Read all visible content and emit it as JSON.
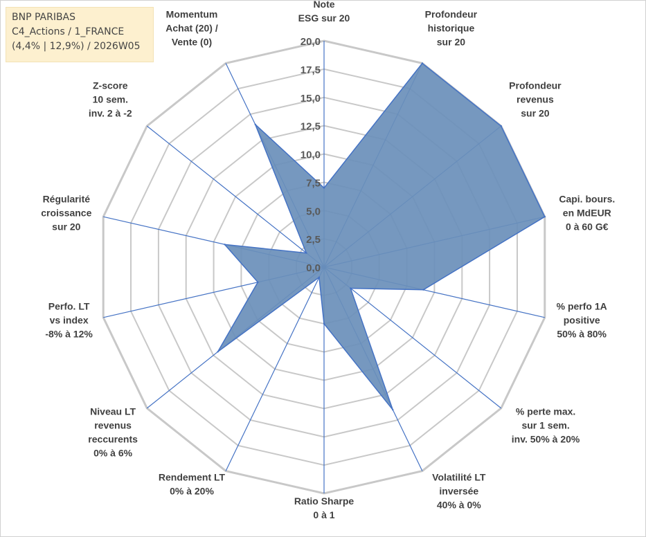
{
  "info_box": {
    "line1": "BNP PARIBAS",
    "line2": "C4_Actions / 1_FRANCE",
    "line3": "(4,4% | 12,9%) / 2026W05"
  },
  "colors": {
    "fill": "#6a8fba",
    "stroke": "#4472c4",
    "grid": "#c8c8c8",
    "spoke": "#4472c4",
    "info_bg": "#fdf0cf"
  },
  "chart_data": {
    "type": "radar",
    "title": "",
    "rmin": 0,
    "rmax": 20,
    "ticks": [
      "0,0",
      "2,5",
      "5,0",
      "7,5",
      "10,0",
      "12,5",
      "15,0",
      "17,5",
      "20,0"
    ],
    "tick_values": [
      0,
      2.5,
      5,
      7.5,
      10,
      12.5,
      15,
      17.5,
      20
    ],
    "categories": [
      [
        "Note",
        "ESG sur 20"
      ],
      [
        "Profondeur",
        "historique",
        "sur 20"
      ],
      [
        "Profondeur",
        "revenus",
        "sur 20"
      ],
      [
        "Capi. bours.",
        "en MdEUR",
        "0 à 60 G€"
      ],
      [
        "% perfo 1A",
        "positive",
        "50% à 80%"
      ],
      [
        "% perte max.",
        "sur 1 sem.",
        "inv. 50% à 20%"
      ],
      [
        "Volatilité LT",
        "inversée",
        "40% à 0%"
      ],
      [
        "Ratio Sharpe",
        "0 à 1"
      ],
      [
        "Rendement LT",
        "0% à 20%"
      ],
      [
        "Niveau LT",
        "revenus",
        "reccurents",
        "0% à 6%"
      ],
      [
        "Perfo. LT",
        "vs index",
        "-8% à 12%"
      ],
      [
        "Régularité",
        "croissance",
        "sur 20"
      ],
      [
        "Z-score",
        "10 sem.",
        "inv. 2 à -2"
      ],
      [
        "Momentum",
        "Achat (20) /",
        "Vente (0)"
      ]
    ],
    "values": [
      7,
      20,
      20,
      20,
      9,
      3,
      14,
      5,
      1,
      12,
      6,
      9,
      2,
      14
    ],
    "grid": true,
    "legend": "none"
  }
}
